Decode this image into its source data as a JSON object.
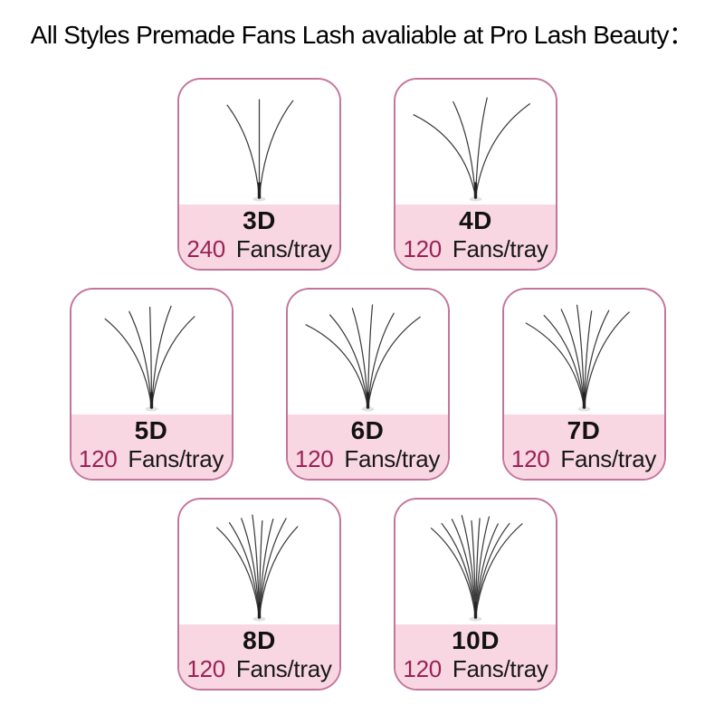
{
  "title": "All Styles Premade Fans Lash avaliable at Pro Lash Beauty：",
  "colors": {
    "card_border": "#c4759c",
    "footer_bg": "#f8d7e3",
    "count_text": "#9b2155",
    "label_text": "#121212",
    "lash_stroke": "#232323"
  },
  "cards": [
    {
      "label": "3D",
      "count": "240",
      "unit": "Fans/tray",
      "lashes": 3
    },
    {
      "label": "4D",
      "count": "120",
      "unit": "Fans/tray",
      "lashes": 4
    },
    {
      "label": "5D",
      "count": "120",
      "unit": "Fans/tray",
      "lashes": 5
    },
    {
      "label": "6D",
      "count": "120",
      "unit": "Fans/tray",
      "lashes": 6
    },
    {
      "label": "7D",
      "count": "120",
      "unit": "Fans/tray",
      "lashes": 7
    },
    {
      "label": "8D",
      "count": "120",
      "unit": "Fans/tray",
      "lashes": 8
    },
    {
      "label": "10D",
      "count": "120",
      "unit": "Fans/tray",
      "lashes": 10
    }
  ]
}
